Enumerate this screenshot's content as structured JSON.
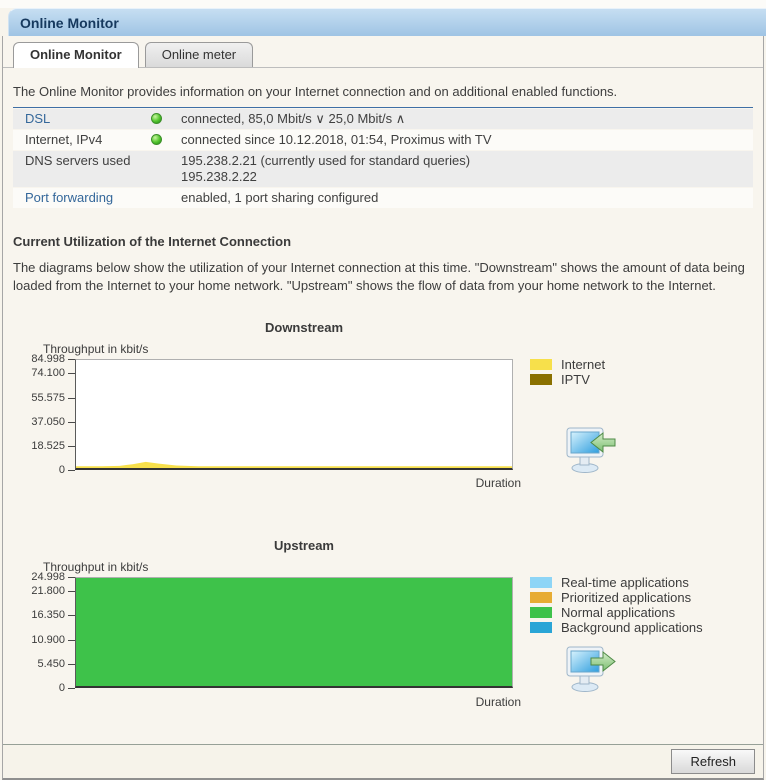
{
  "header": {
    "title": "Online Monitor"
  },
  "tabs": [
    {
      "label": "Online Monitor",
      "active": true
    },
    {
      "label": "Online meter",
      "active": false
    }
  ],
  "intro": "The Online Monitor provides information on your Internet connection and on additional enabled functions.",
  "theme": {
    "accent_divider": "#3F6FA5",
    "led_green": "#4CC42C",
    "header_blue": "#A9CBE8"
  },
  "status_table": {
    "rows": [
      {
        "label": "DSL",
        "is_link": true,
        "led": "green",
        "value": "connected, 85,0 Mbit/s ∨ 25,0 Mbit/s ∧"
      },
      {
        "label": "Internet, IPv4",
        "is_link": false,
        "led": "green",
        "value": "connected since 10.12.2018, 01:54, Proximus with TV"
      },
      {
        "label": "DNS servers used",
        "is_link": false,
        "led": null,
        "value": "195.238.2.21 (currently used for standard queries)",
        "value2": "195.238.2.22"
      },
      {
        "label": "Port forwarding",
        "is_link": true,
        "led": null,
        "value": "enabled, 1 port sharing configured"
      }
    ]
  },
  "section": {
    "heading": "Current Utilization of the Internet Connection",
    "description": "The diagrams below show the utilization of your Internet connection at this time. \"Downstream\" shows the amount of data being loaded from the Internet to your home network. \"Upstream\" shows the flow of data from your home network to the Internet."
  },
  "chart_data": [
    {
      "type": "area",
      "title": "Downstream",
      "ylabel": "Throughput in kbit/s",
      "xlabel": "Duration",
      "ylim": [
        0,
        84998
      ],
      "yticks": [
        84998,
        74100,
        55575,
        37050,
        18525,
        0
      ],
      "ytick_labels": [
        "84.998",
        "74.100",
        "55.575",
        "37.050",
        "18.525",
        "0"
      ],
      "grid": false,
      "legend_position": "right",
      "series": [
        {
          "name": "Internet",
          "color": "#F7E04B",
          "x_percent": [
            0,
            6,
            10,
            13,
            16,
            19,
            23,
            28,
            35,
            50,
            75,
            100
          ],
          "values": [
            1400,
            1400,
            1700,
            3000,
            4800,
            3400,
            2000,
            1400,
            1400,
            1400,
            1400,
            1400
          ]
        },
        {
          "name": "IPTV",
          "color": "#8A7000",
          "x_percent": [
            0,
            100
          ],
          "values": [
            0,
            0
          ]
        }
      ]
    },
    {
      "type": "area",
      "title": "Upstream",
      "ylabel": "Throughput in kbit/s",
      "xlabel": "Duration",
      "ylim": [
        0,
        24998
      ],
      "yticks": [
        24998,
        21800,
        16350,
        10900,
        5450,
        0
      ],
      "ytick_labels": [
        "24.998",
        "21.800",
        "16.350",
        "10.900",
        "5.450",
        "0"
      ],
      "grid": false,
      "legend_position": "right",
      "series": [
        {
          "name": "Real-time applications",
          "color": "#8ED5F6",
          "x_percent": [
            0,
            100
          ],
          "values": [
            0,
            0
          ]
        },
        {
          "name": "Prioritized applications",
          "color": "#E7AC33",
          "x_percent": [
            0,
            100
          ],
          "values": [
            0,
            0
          ]
        },
        {
          "name": "Normal applications",
          "color": "#3EC24A",
          "x_percent": [
            0,
            100
          ],
          "values": [
            24998,
            24998
          ]
        },
        {
          "name": "Background applications",
          "color": "#2AA5D6",
          "x_percent": [
            0,
            100
          ],
          "values": [
            0,
            0
          ]
        }
      ]
    }
  ],
  "footer": {
    "refresh_label": "Refresh"
  }
}
